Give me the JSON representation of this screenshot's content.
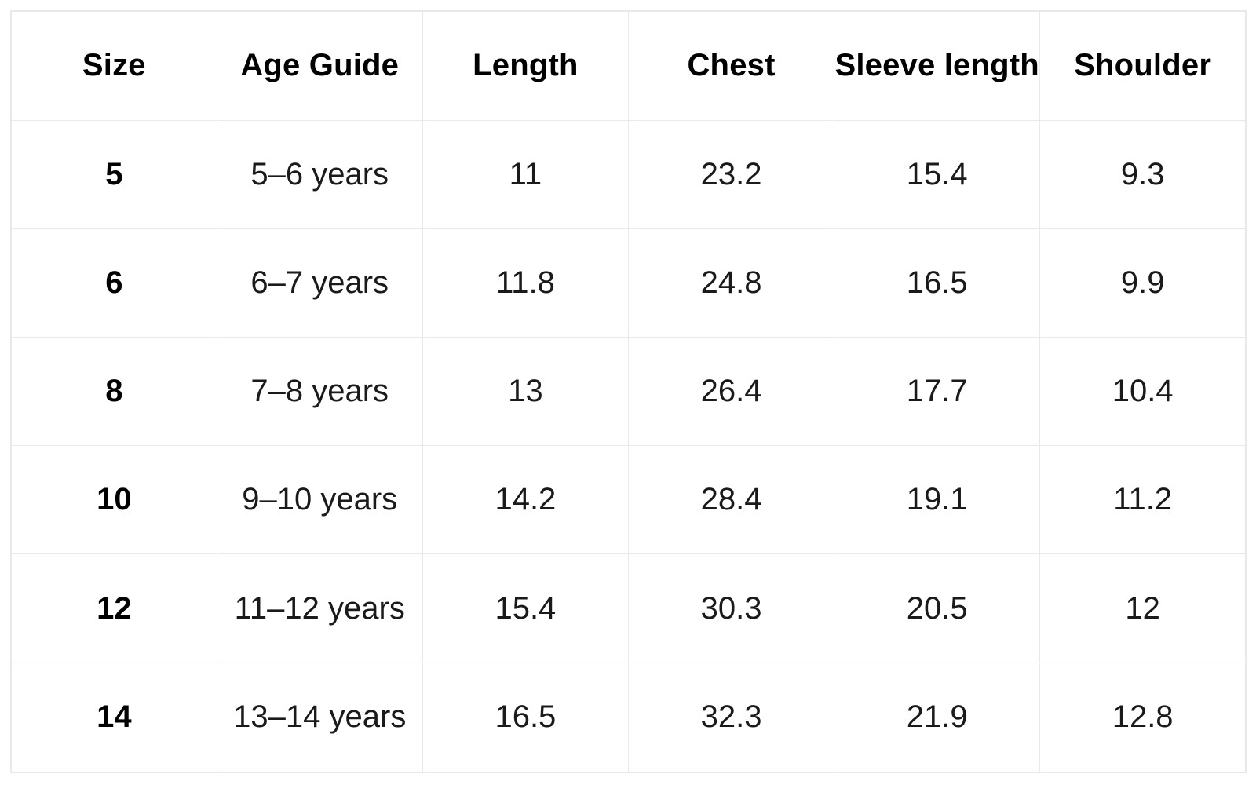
{
  "chart_data": {
    "type": "table",
    "columns": [
      "Size",
      "Age Guide",
      "Length",
      "Chest",
      "Sleeve length",
      "Shoulder"
    ],
    "rows": [
      [
        "5",
        "5–6 years",
        "11",
        "23.2",
        "15.4",
        "9.3"
      ],
      [
        "6",
        "6–7 years",
        "11.8",
        "24.8",
        "16.5",
        "9.9"
      ],
      [
        "8",
        "7–8 years",
        "13",
        "26.4",
        "17.7",
        "10.4"
      ],
      [
        "10",
        "9–10 years",
        "14.2",
        "28.4",
        "19.1",
        "11.2"
      ],
      [
        "12",
        "11–12 years",
        "15.4",
        "30.3",
        "20.5",
        "12"
      ],
      [
        "14",
        "13–14 years",
        "16.5",
        "32.3",
        "21.9",
        "12.8"
      ]
    ],
    "layout": {
      "grid": "on",
      "header_row": true,
      "bold_first_column": true
    },
    "colors": {
      "border": "#e9e9e9",
      "header_text": "#000000",
      "cell_text": "#1a1a1a",
      "background": "#ffffff"
    }
  }
}
